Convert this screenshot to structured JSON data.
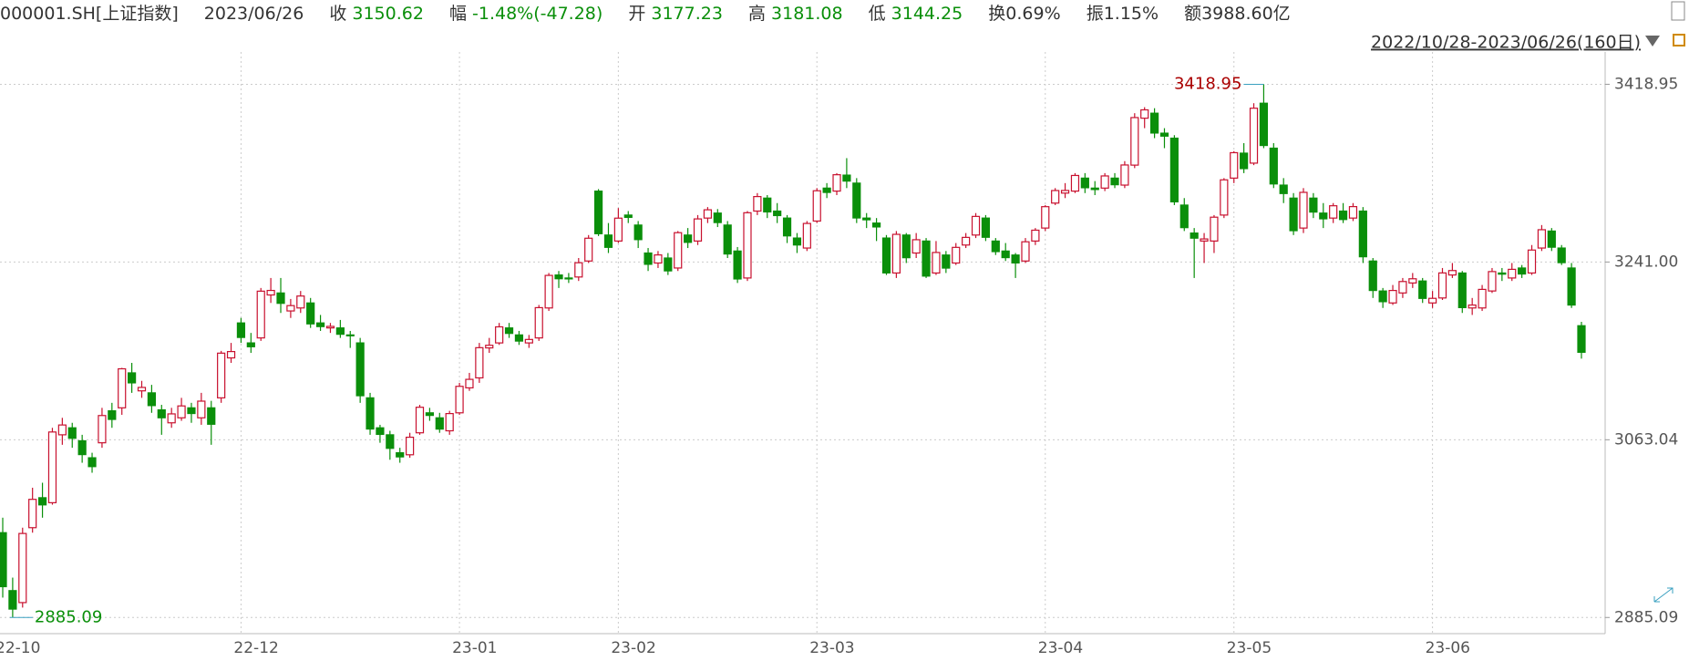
{
  "header": {
    "symbol": "000001.SH[上证指数]",
    "date": "2023/06/26",
    "close_label": "收",
    "change_label": "幅",
    "change": "-1.48%(-47.28)",
    "open_label": "开",
    "high_label": "高",
    "low_label": "低",
    "turnover": "换0.69%",
    "amplitude": "振1.15%",
    "amount": "额3988.60亿"
  },
  "chart_data": {
    "type": "candlestick",
    "range": "2022/10/28-2023/06/26(160日)",
    "up_color": "#c8102e",
    "down_color": "#0a8f0a",
    "x": [
      "22-10",
      null,
      null,
      null,
      null,
      null,
      null,
      null,
      null,
      null,
      null,
      null,
      null,
      null,
      null,
      null,
      null,
      null,
      null,
      null,
      null,
      null,
      null,
      null,
      "22-12",
      null,
      null,
      null,
      null,
      null,
      null,
      null,
      null,
      null,
      null,
      null,
      null,
      null,
      null,
      null,
      null,
      null,
      null,
      null,
      null,
      null,
      "23-01",
      null,
      null,
      null,
      null,
      null,
      null,
      null,
      null,
      null,
      null,
      null,
      null,
      null,
      null,
      null,
      "23-02",
      null,
      null,
      null,
      null,
      null,
      null,
      null,
      null,
      null,
      null,
      null,
      null,
      null,
      null,
      null,
      null,
      null,
      null,
      null,
      "23-03",
      null,
      null,
      null,
      null,
      null,
      null,
      null,
      null,
      null,
      null,
      null,
      null,
      null,
      null,
      null,
      null,
      null,
      null,
      null,
      null,
      null,
      null,
      "23-04",
      null,
      null,
      null,
      null,
      null,
      null,
      null,
      null,
      null,
      null,
      null,
      null,
      null,
      null,
      null,
      null,
      null,
      null,
      "23-05",
      null,
      null,
      null,
      null,
      null,
      null,
      null,
      null,
      null,
      null,
      null,
      null,
      null,
      null,
      null,
      null,
      null,
      null,
      null,
      "23-06",
      null,
      null,
      null,
      null,
      null,
      null,
      null,
      null,
      null,
      null,
      null,
      null,
      null,
      null,
      null
    ],
    "open": [
      2970,
      2912,
      2900,
      2975,
      3005,
      3000,
      3068,
      3075,
      3062,
      3045,
      3060,
      3092,
      3095,
      3130,
      3112,
      3110,
      3093,
      3080,
      3085,
      3095,
      3085,
      3095,
      3105,
      3145,
      3180,
      3160,
      3165,
      3208,
      3210,
      3192,
      3195,
      3200,
      3180,
      3175,
      3175,
      3168,
      3160,
      3105,
      3075,
      3068,
      3050,
      3048,
      3070,
      3090,
      3085,
      3072,
      3090,
      3115,
      3125,
      3155,
      3160,
      3175,
      3168,
      3160,
      3165,
      3195,
      3228,
      3225,
      3226,
      3242,
      3312,
      3268,
      3262,
      3288,
      3278,
      3250,
      3240,
      3245,
      3235,
      3268,
      3262,
      3285,
      3290,
      3278,
      3252,
      3225,
      3292,
      3305,
      3292,
      3285,
      3265,
      3255,
      3282,
      3315,
      3312,
      3328,
      3320,
      3285,
      3280,
      3265,
      3230,
      3268,
      3250,
      3262,
      3230,
      3248,
      3240,
      3258,
      3268,
      3285,
      3262,
      3252,
      3248,
      3242,
      3262,
      3275,
      3300,
      3310,
      3312,
      3325,
      3315,
      3315,
      3325,
      3318,
      3338,
      3385,
      3390,
      3370,
      3365,
      3298,
      3270,
      3262,
      3262,
      3288,
      3325,
      3350,
      3340,
      3400,
      3355,
      3318,
      3305,
      3275,
      3305,
      3290,
      3285,
      3292,
      3285,
      3292,
      3242,
      3212,
      3200,
      3210,
      3220,
      3222,
      3200,
      3205,
      3228,
      3230,
      3195,
      3195,
      3212,
      3230,
      3225,
      3235,
      3230,
      3255,
      3272,
      3255,
      3235,
      3177.23
    ],
    "high": [
      2985,
      2925,
      2975,
      3015,
      3020,
      3075,
      3085,
      3080,
      3068,
      3050,
      3095,
      3100,
      3135,
      3140,
      3122,
      3118,
      3098,
      3095,
      3105,
      3100,
      3110,
      3102,
      3152,
      3160,
      3185,
      3170,
      3215,
      3225,
      3225,
      3204,
      3212,
      3205,
      3188,
      3180,
      3183,
      3172,
      3165,
      3110,
      3078,
      3072,
      3055,
      3070,
      3098,
      3095,
      3090,
      3092,
      3120,
      3130,
      3160,
      3165,
      3180,
      3180,
      3172,
      3168,
      3198,
      3230,
      3232,
      3230,
      3245,
      3268,
      3314,
      3280,
      3295,
      3292,
      3282,
      3255,
      3252,
      3250,
      3272,
      3275,
      3288,
      3296,
      3294,
      3282,
      3256,
      3292,
      3310,
      3308,
      3300,
      3288,
      3270,
      3282,
      3315,
      3320,
      3330,
      3345,
      3325,
      3290,
      3285,
      3268,
      3272,
      3270,
      3270,
      3265,
      3262,
      3252,
      3260,
      3270,
      3290,
      3288,
      3265,
      3260,
      3250,
      3265,
      3275,
      3298,
      3315,
      3320,
      3330,
      3330,
      3322,
      3330,
      3330,
      3342,
      3390,
      3396,
      3395,
      3375,
      3368,
      3305,
      3275,
      3270,
      3288,
      3325,
      3352,
      3360,
      3400,
      3418.95,
      3360,
      3325,
      3310,
      3315,
      3310,
      3300,
      3300,
      3300,
      3300,
      3296,
      3245,
      3215,
      3218,
      3225,
      3230,
      3225,
      3212,
      3235,
      3240,
      3232,
      3205,
      3218,
      3235,
      3235,
      3240,
      3238,
      3258,
      3278,
      3275,
      3258,
      3240,
      3181.08
    ],
    "low": [
      2905,
      2885.09,
      2895,
      2970,
      2985,
      2998,
      3058,
      3055,
      3040,
      3030,
      3055,
      3075,
      3088,
      3110,
      3105,
      3090,
      3068,
      3075,
      3082,
      3080,
      3078,
      3058,
      3100,
      3140,
      3160,
      3150,
      3162,
      3200,
      3190,
      3185,
      3190,
      3175,
      3172,
      3170,
      3165,
      3155,
      3100,
      3068,
      3060,
      3043,
      3040,
      3045,
      3068,
      3082,
      3070,
      3068,
      3088,
      3112,
      3120,
      3150,
      3158,
      3165,
      3158,
      3155,
      3162,
      3192,
      3215,
      3220,
      3222,
      3240,
      3267,
      3250,
      3260,
      3280,
      3255,
      3232,
      3235,
      3228,
      3232,
      3255,
      3258,
      3280,
      3276,
      3245,
      3220,
      3222,
      3288,
      3285,
      3280,
      3260,
      3250,
      3252,
      3280,
      3305,
      3308,
      3315,
      3280,
      3275,
      3262,
      3228,
      3225,
      3240,
      3245,
      3225,
      3228,
      3230,
      3238,
      3255,
      3265,
      3262,
      3248,
      3242,
      3225,
      3240,
      3258,
      3272,
      3298,
      3305,
      3310,
      3310,
      3308,
      3312,
      3315,
      3315,
      3335,
      3375,
      3365,
      3355,
      3298,
      3272,
      3225,
      3240,
      3250,
      3285,
      3320,
      3330,
      3338,
      3355,
      3315,
      3300,
      3268,
      3270,
      3285,
      3275,
      3280,
      3280,
      3282,
      3240,
      3205,
      3195,
      3198,
      3205,
      3215,
      3200,
      3195,
      3203,
      3225,
      3190,
      3188,
      3192,
      3210,
      3222,
      3222,
      3225,
      3228,
      3252,
      3252,
      3238,
      3195,
      3144.25
    ],
    "close": [
      2915.93,
      2893.48,
      2969.2,
      3003.37,
      2997.81,
      3070.8,
      3077.82,
      3064.49,
      3048.17,
      3036.13,
      3087.29,
      3083.4,
      3134.08,
      3119.98,
      3115.43,
      3097.24,
      3085.04,
      3088.94,
      3096.91,
      3089.31,
      3101.69,
      3078.55,
      3149.75,
      3151.34,
      3165.47,
      3156.14,
      3211.81,
      3212.53,
      3199.62,
      3197.35,
      3206.95,
      3179.04,
      3176.33,
      3176.53,
      3168.65,
      3167.86,
      3107.12,
      3073.77,
      3068.41,
      3054.43,
      3045.87,
      3065.56,
      3095.57,
      3087.4,
      3073.7,
      3089.26,
      3116.51,
      3123.52,
      3155.22,
      3157.64,
      3176.08,
      3169.51,
      3161.84,
      3163.45,
      3195.31,
      3227.59,
      3224.24,
      3224.41,
      3240.28,
      3264.81,
      3269.32,
      3255.67,
      3284.92,
      3285.67,
      3263.41,
      3238.7,
      3248.09,
      3232.11,
      3270.38,
      3260.67,
      3284.16,
      3293.28,
      3280.49,
      3249.03,
      3224.02,
      3290.34,
      3306.52,
      3291.15,
      3287.48,
      3267.16,
      3258.03,
      3279.61,
      3312.35,
      3310.65,
      3328.39,
      3322.03,
      3285.1,
      3283.25,
      3276.09,
      3230.08,
      3268.7,
      3245.31,
      3263.31,
      3226.89,
      3250.55,
      3234.91,
      3255.65,
      3265.65,
      3286.65,
      3265.75,
      3251.4,
      3245.38,
      3240.06,
      3261.25,
      3272.86,
      3296.4,
      3312.56,
      3312.63,
      3327.65,
      3315.36,
      3313.57,
      3327.18,
      3318.36,
      3338.15,
      3385.61,
      3393.33,
      3370.13,
      3367.03,
      3301.26,
      3275.41,
      3264.87,
      3264.1,
      3285.88,
      3323.27,
      3350.46,
      3334.5,
      3395,
      3357.67,
      3319.15,
      3309.55,
      3272.36,
      3310.74,
      3290.99,
      3284.23,
      3297.32,
      3283.54,
      3296.47,
      3246.24,
      3212.5,
      3201.26,
      3212.5,
      3221.45,
      3224.21,
      3204.56,
      3204.63,
      3230.07,
      3232.44,
      3195.34,
      3197.9,
      3213.59,
      3231.41,
      3228.83,
      3233.67,
      3228.99,
      3252.98,
      3273.33,
      3255.81,
      3240.36,
      3197.9,
      3150.62
    ],
    "ylim": [
      2868.9,
      3451.3
    ],
    "yticks": [
      2885.09,
      3063.04,
      {
        "value": 3241,
        "label": "3241.00"
      },
      3418.95
    ],
    "grid": true
  }
}
